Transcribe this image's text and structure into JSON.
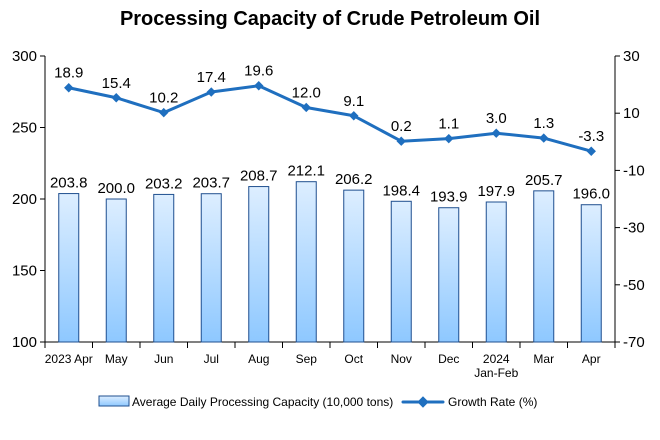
{
  "chart_data": {
    "type": "bar",
    "title": "Processing Capacity of Crude Petroleum Oil",
    "categories": [
      [
        "2023 Apr"
      ],
      [
        "May"
      ],
      [
        "Jun"
      ],
      [
        "Jul"
      ],
      [
        "Aug"
      ],
      [
        "Sep"
      ],
      [
        "Oct"
      ],
      [
        "Nov"
      ],
      [
        "Dec"
      ],
      [
        "2024",
        "Jan-Feb"
      ],
      [
        "Mar"
      ],
      [
        "Apr"
      ]
    ],
    "series": [
      {
        "name": "Average Daily Processing Capacity (10,000 tons)",
        "type": "bar",
        "axis": "left",
        "values": [
          203.8,
          200.0,
          203.2,
          203.7,
          208.7,
          212.1,
          206.2,
          198.4,
          193.9,
          197.9,
          205.7,
          196.0
        ],
        "labels": [
          "203.8",
          "200.0",
          "203.2",
          "203.7",
          "208.7",
          "212.1",
          "206.2",
          "198.4",
          "193.9",
          "197.9",
          "205.7",
          "196.0"
        ]
      },
      {
        "name": "Growth Rate (%)",
        "type": "line",
        "axis": "right",
        "values": [
          18.9,
          15.4,
          10.2,
          17.4,
          19.6,
          12.0,
          9.1,
          0.2,
          1.1,
          3.0,
          1.3,
          -3.3
        ],
        "labels": [
          "18.9",
          "15.4",
          "10.2",
          "17.4",
          "19.6",
          "12.0",
          "9.1",
          "0.2",
          "1.1",
          "3.0",
          "1.3",
          "-3.3"
        ]
      }
    ],
    "left_axis": {
      "ylim": [
        100,
        300
      ],
      "ticks": [
        100,
        150,
        200,
        250,
        300
      ],
      "tick_labels": [
        "100",
        "150",
        "200",
        "250",
        "300"
      ]
    },
    "right_axis": {
      "ylim": [
        -70,
        30
      ],
      "ticks": [
        -70,
        -50,
        -30,
        -10,
        10,
        30
      ],
      "tick_labels": [
        "-70",
        "-50",
        "-30",
        "-10",
        "10",
        "30"
      ]
    },
    "grid": false,
    "legend_position": "bottom",
    "colors": {
      "bar_fill_top": "#ddeeff",
      "bar_fill_bottom": "#8ec8ff",
      "bar_stroke": "#1f4f8f",
      "line": "#1f6fbf",
      "axis": "#000000"
    }
  }
}
